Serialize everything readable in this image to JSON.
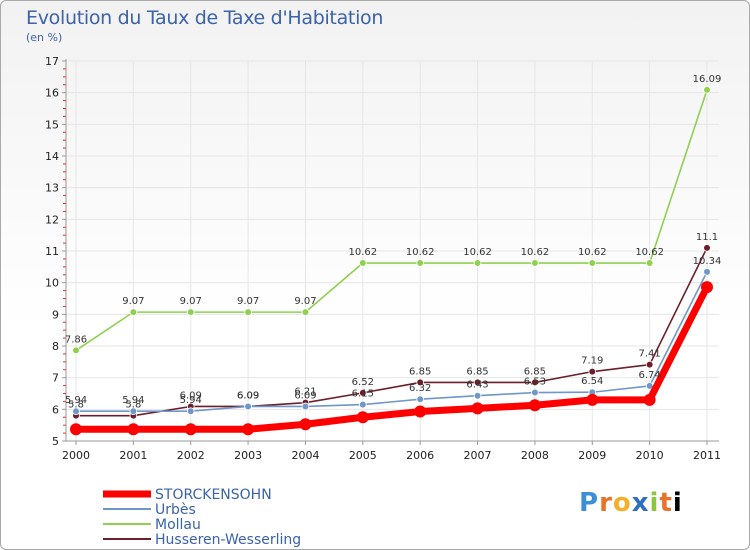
{
  "header": {
    "title": "Evolution du Taux de Taxe d'Habitation",
    "unit": "(en %)"
  },
  "logo": {
    "letters": [
      "P",
      "r",
      "o",
      "x",
      "i",
      "t",
      "i"
    ],
    "text": "Proxiti"
  },
  "chart_data": {
    "type": "line",
    "title": "Evolution du Taux de Taxe d'Habitation",
    "ylabel": "(en %)",
    "xlabel": "",
    "ylim": [
      5,
      17
    ],
    "yticks": [
      "5",
      "6",
      "7",
      "8",
      "9",
      "10",
      "11",
      "12",
      "13",
      "14",
      "15",
      "16",
      "17"
    ],
    "categories": [
      "2000",
      "2001",
      "2002",
      "2003",
      "2004",
      "2005",
      "2006",
      "2007",
      "2008",
      "2009",
      "2010",
      "2011"
    ],
    "legend_position": "bottom-left",
    "series": [
      {
        "name": "STORCKENSOHN",
        "color": "#ff0000",
        "values": [
          5.37,
          5.37,
          5.37,
          5.37,
          5.53,
          5.75,
          5.93,
          6.03,
          6.13,
          6.3,
          6.3,
          9.86
        ],
        "labels": []
      },
      {
        "name": "Urbès",
        "color": "#6f97c9",
        "values": [
          5.94,
          5.94,
          5.94,
          6.09,
          6.09,
          6.15,
          6.32,
          6.43,
          6.53,
          6.54,
          6.74,
          10.34
        ],
        "labels": [
          "5.94",
          "5.94",
          "5.94",
          "6.09",
          "6.09",
          "6.15",
          "6.32",
          "6.43",
          "6.53",
          "6.54",
          "6.74",
          "10.34"
        ]
      },
      {
        "name": "Mollau",
        "color": "#8fd14f",
        "values": [
          7.86,
          9.07,
          9.07,
          9.07,
          9.07,
          10.62,
          10.62,
          10.62,
          10.62,
          10.62,
          10.62,
          16.09
        ],
        "labels": [
          "7.86",
          "9.07",
          "9.07",
          "9.07",
          "9.07",
          "10.62",
          "10.62",
          "10.62",
          "10.62",
          "10.62",
          "10.62",
          "16.09"
        ]
      },
      {
        "name": "Husseren-Wesserling",
        "color": "#6b1f2a",
        "values": [
          5.8,
          5.8,
          6.09,
          6.09,
          6.21,
          6.52,
          6.85,
          6.85,
          6.85,
          7.19,
          7.41,
          11.1
        ],
        "labels": [
          "5.8",
          "5.8",
          "6.09",
          "6.09",
          "6.21",
          "6.52",
          "6.85",
          "6.85",
          "6.85",
          "7.19",
          "7.41",
          "11.1"
        ]
      }
    ]
  }
}
